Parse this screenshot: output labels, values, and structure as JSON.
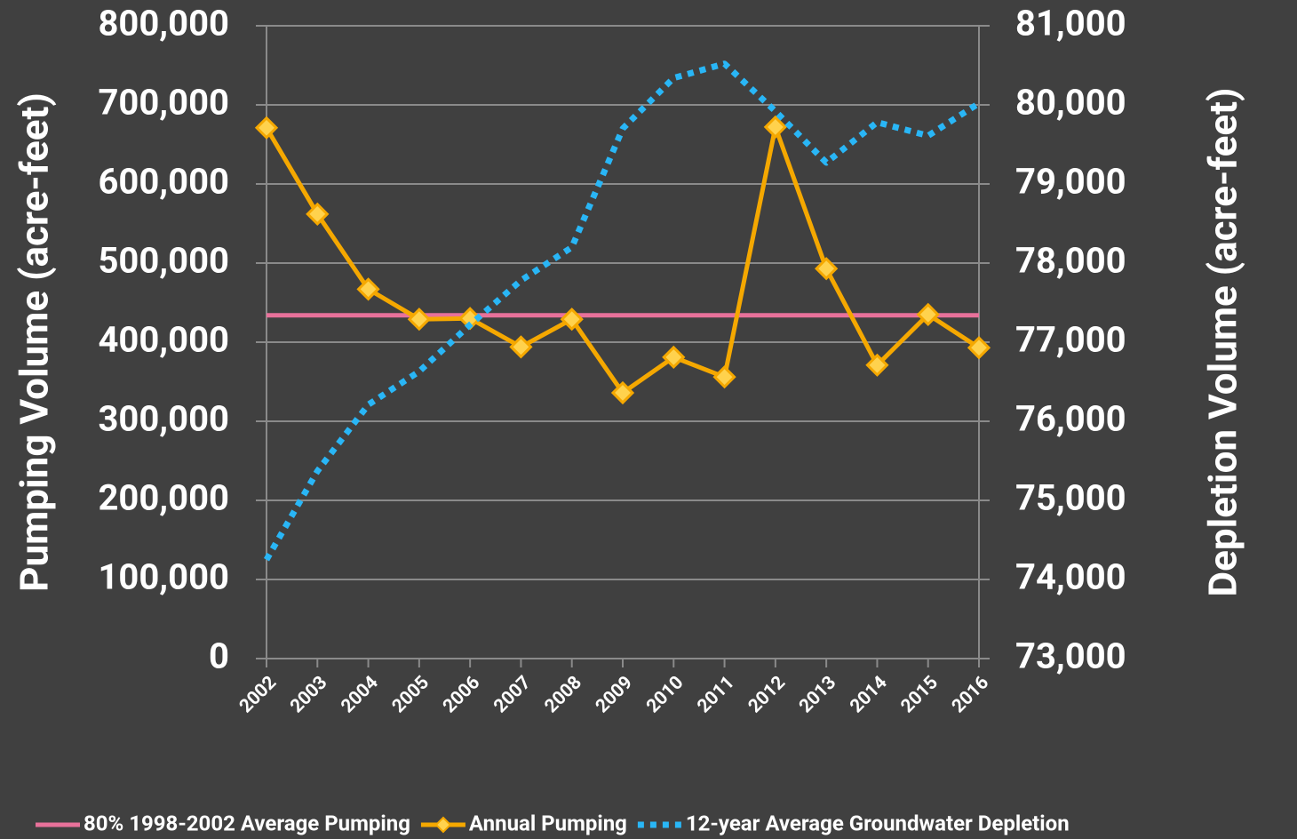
{
  "chart_data": {
    "type": "line",
    "y_title": "Pumping Volume (acre-feet)",
    "y2_title": "Depletion Volume (acre-feet)",
    "categories": [
      "2002",
      "2003",
      "2004",
      "2005",
      "2006",
      "2007",
      "2008",
      "2009",
      "2010",
      "2011",
      "2012",
      "2013",
      "2014",
      "2015",
      "2016"
    ],
    "ylim": [
      0,
      800000
    ],
    "yticks": [
      0,
      {
        "value": 100000,
        "label": "100,000"
      },
      {
        "value": 200000,
        "label": "200,000"
      },
      {
        "value": 300000,
        "label": "300,000"
      },
      {
        "value": 400000,
        "label": "400,000"
      },
      {
        "value": 500000,
        "label": "500,000"
      },
      {
        "value": 600000,
        "label": "600,000"
      },
      {
        "value": 700000,
        "label": "700,000"
      },
      {
        "value": 800000,
        "label": "800,000"
      }
    ],
    "y2lim": [
      73000,
      81000
    ],
    "y2ticks": [
      {
        "value": 73000,
        "label": "73,000"
      },
      {
        "value": 74000,
        "label": "74,000"
      },
      {
        "value": 75000,
        "label": "75,000"
      },
      {
        "value": 76000,
        "label": "76,000"
      },
      {
        "value": 77000,
        "label": "77,000"
      },
      {
        "value": 78000,
        "label": "78,000"
      },
      {
        "value": 79000,
        "label": "79,000"
      },
      {
        "value": 80000,
        "label": "80,000"
      },
      {
        "value": 81000,
        "label": "81,000"
      }
    ],
    "grid": true,
    "legend": "bottom",
    "series": [
      {
        "name": "80% 1998-2002 Average Pumping",
        "color": "#e8719a",
        "line_style": "solid",
        "values": [
          434000,
          434000,
          434000,
          434000,
          434000,
          434000,
          434000,
          434000,
          434000,
          434000,
          434000,
          434000,
          434000,
          434000,
          434000
        ]
      },
      {
        "name": "Annual Pumping",
        "color": "#f5a800",
        "line_style": "solid",
        "marker": "diamond",
        "marker_color": "#ffd24d",
        "values": [
          671000,
          562000,
          467000,
          429000,
          430000,
          394000,
          429000,
          336000,
          381000,
          356000,
          672000,
          493000,
          371000,
          435000,
          393000
        ]
      },
      {
        "name": "12-year Average Groundwater Depletion",
        "color": "#29b6f6",
        "line_style": "dotted",
        "axis": "y2",
        "values": [
          74250,
          75370,
          76210,
          76630,
          77220,
          77780,
          78200,
          79700,
          80340,
          80520,
          79920,
          79270,
          79780,
          79610,
          80020
        ]
      }
    ]
  }
}
